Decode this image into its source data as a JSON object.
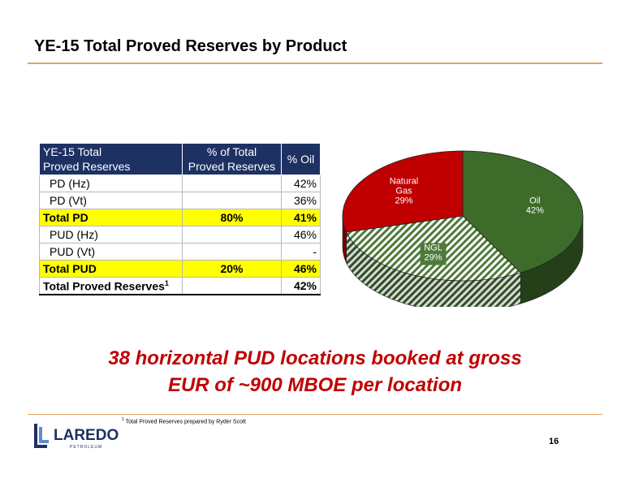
{
  "title": "YE-15 Total Proved Reserves by Product",
  "table": {
    "headers": [
      "YE-15 Total\nProved Reserves",
      "% of Total\nProved Reserves",
      "% Oil"
    ],
    "rows": [
      {
        "label": "PD (Hz)",
        "pct_total": "",
        "pct_oil": "42%",
        "highlight": false
      },
      {
        "label": "PD (Vt)",
        "pct_total": "",
        "pct_oil": "36%",
        "highlight": false
      },
      {
        "label": "Total PD",
        "pct_total": "80%",
        "pct_oil": "41%",
        "highlight": true
      },
      {
        "label": "PUD (Hz)",
        "pct_total": "",
        "pct_oil": "46%",
        "highlight": false
      },
      {
        "label": "PUD (Vt)",
        "pct_total": "",
        "pct_oil": "-",
        "highlight": false
      },
      {
        "label": "Total PUD",
        "pct_total": "20%",
        "pct_oil": "46%",
        "highlight": true
      },
      {
        "label": "Total Proved Reserves",
        "label_sup": "1",
        "pct_total": "",
        "pct_oil": "42%",
        "highlight": false
      }
    ],
    "header_color": "#1e3163",
    "highlight_color": "#ffff00"
  },
  "chart_data": {
    "type": "pie",
    "title": "",
    "slices": [
      {
        "label": "Oil",
        "value": 42,
        "value_label": "42%",
        "color": "#3d6b2a",
        "pattern": "solid"
      },
      {
        "label": "NGL",
        "value": 29,
        "value_label": "29%",
        "color": "#4f7a3a",
        "pattern": "hatch"
      },
      {
        "label": "Natural Gas",
        "label_lines": [
          "Natural",
          "Gas"
        ],
        "value": 29,
        "value_label": "29%",
        "color": "#c00000",
        "pattern": "solid"
      }
    ],
    "style": "3d",
    "legend": "none"
  },
  "headline": {
    "line1": "38 horizontal PUD locations booked at gross",
    "line2": "EUR of ~900 MBOE per location",
    "color": "#c00000"
  },
  "footnote": {
    "sup": "1",
    "text": "Total Proved Reserves prepared by Ryder Scott"
  },
  "logo": {
    "name": "LAREDO",
    "sub": "PETROLEUM"
  },
  "page_number": "16"
}
